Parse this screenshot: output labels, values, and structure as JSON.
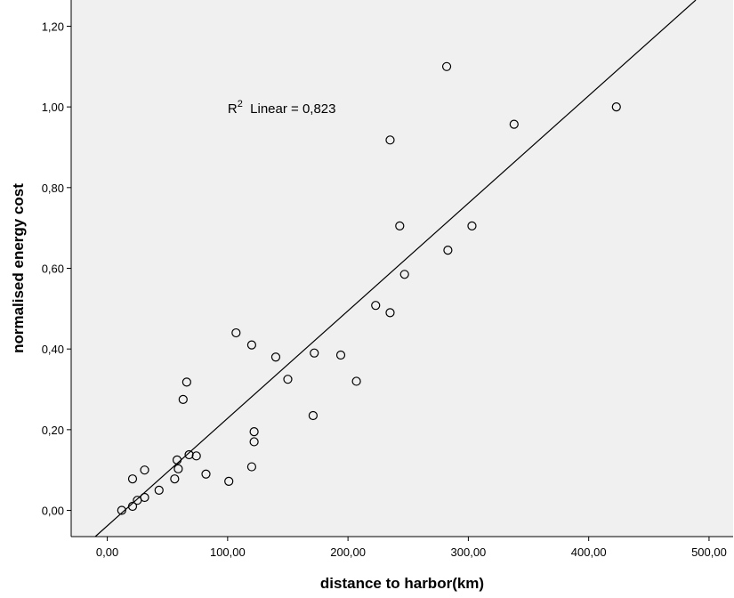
{
  "chart_data": {
    "type": "scatter",
    "title": "",
    "xlabel": "distance to harbor(km)",
    "ylabel": "normalised energy cost",
    "xlim": [
      -30,
      520
    ],
    "ylim": [
      -0.065,
      1.265
    ],
    "x_ticks": [
      0,
      100,
      200,
      300,
      400,
      500
    ],
    "x_tick_labels": [
      "0,00",
      "100,00",
      "200,00",
      "300,00",
      "400,00",
      "500,00"
    ],
    "y_ticks": [
      0,
      0.2,
      0.4,
      0.6,
      0.8,
      1.0,
      1.2
    ],
    "y_tick_labels": [
      "0,00",
      "0,20",
      "0,40",
      "0,60",
      "0,80",
      "1,00",
      "1,20"
    ],
    "grid": false,
    "background": "#f0f0f0",
    "marker": "open-circle",
    "points": [
      {
        "x": 12,
        "y": 0.0
      },
      {
        "x": 21,
        "y": 0.01
      },
      {
        "x": 25,
        "y": 0.025
      },
      {
        "x": 31,
        "y": 0.032
      },
      {
        "x": 43,
        "y": 0.05
      },
      {
        "x": 21,
        "y": 0.078
      },
      {
        "x": 31,
        "y": 0.1
      },
      {
        "x": 56,
        "y": 0.078
      },
      {
        "x": 58,
        "y": 0.125
      },
      {
        "x": 59,
        "y": 0.103
      },
      {
        "x": 68,
        "y": 0.138
      },
      {
        "x": 74,
        "y": 0.135
      },
      {
        "x": 82,
        "y": 0.09
      },
      {
        "x": 63,
        "y": 0.275
      },
      {
        "x": 66,
        "y": 0.318
      },
      {
        "x": 101,
        "y": 0.072
      },
      {
        "x": 107,
        "y": 0.44
      },
      {
        "x": 120,
        "y": 0.41
      },
      {
        "x": 120,
        "y": 0.108
      },
      {
        "x": 122,
        "y": 0.17
      },
      {
        "x": 122,
        "y": 0.195
      },
      {
        "x": 140,
        "y": 0.38
      },
      {
        "x": 150,
        "y": 0.325
      },
      {
        "x": 171,
        "y": 0.235
      },
      {
        "x": 172,
        "y": 0.39
      },
      {
        "x": 194,
        "y": 0.385
      },
      {
        "x": 207,
        "y": 0.32
      },
      {
        "x": 223,
        "y": 0.508
      },
      {
        "x": 235,
        "y": 0.49
      },
      {
        "x": 235,
        "y": 0.918
      },
      {
        "x": 243,
        "y": 0.705
      },
      {
        "x": 247,
        "y": 0.585
      },
      {
        "x": 282,
        "y": 1.1
      },
      {
        "x": 283,
        "y": 0.645
      },
      {
        "x": 303,
        "y": 0.705
      },
      {
        "x": 338,
        "y": 0.957
      },
      {
        "x": 423,
        "y": 1.0
      }
    ],
    "fit_line": {
      "type": "linear",
      "x": [
        -10,
        489
      ],
      "y": [
        -0.065,
        1.265
      ]
    },
    "annotation": {
      "prefix": "R",
      "sup": "2",
      "text": "  Linear = 0,823",
      "x": 100,
      "y": 0.985
    }
  }
}
